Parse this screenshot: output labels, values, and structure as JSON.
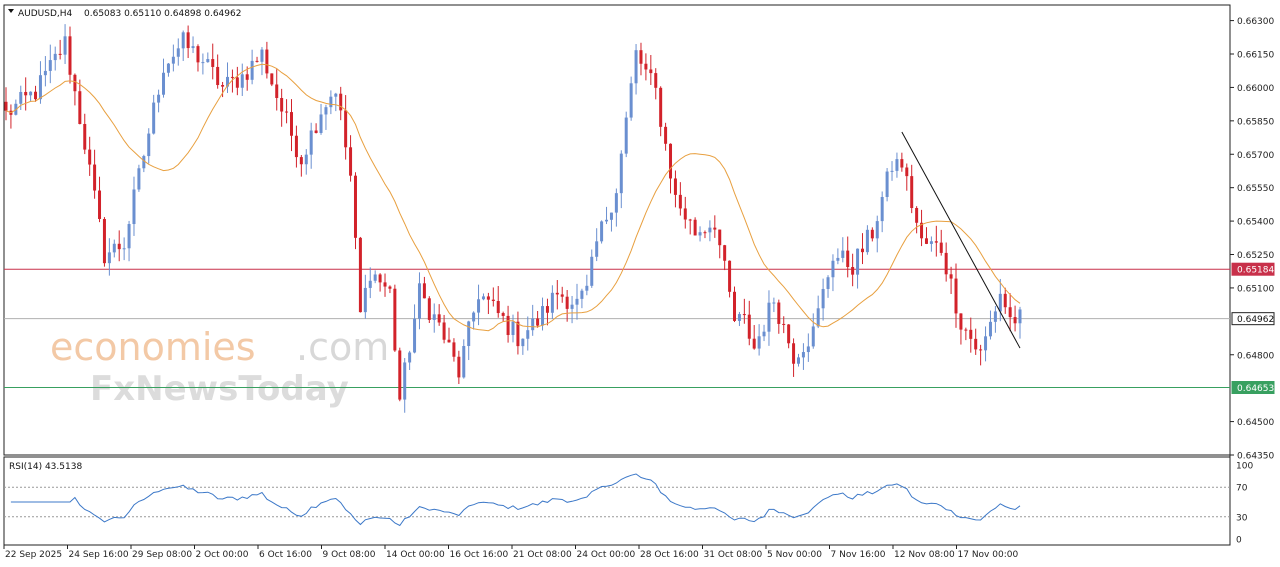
{
  "header": {
    "symbol": "AUDUSD,H4",
    "ohlc": "0.65083 0.65110 0.64898 0.64962"
  },
  "watermark": {
    "brand": "economies",
    "domain": ".com",
    "sub": "FxNewsToday"
  },
  "rsi": {
    "label": "RSI(14) 43.5138",
    "period": 14,
    "value": 43.5138,
    "levels": [
      70,
      30
    ],
    "ticks": [
      "100",
      "70",
      "30",
      "0"
    ],
    "color": "#3c78c8"
  },
  "colors": {
    "bull": "#6a8fd0",
    "bear": "#d2222a",
    "ma": "#e8a040",
    "resistance": "#c8304a",
    "support": "#38a060",
    "current": "#b0b0b0",
    "trendline": "#111111"
  },
  "chart_data": {
    "type": "candlestick",
    "symbol": "AUDUSD",
    "timeframe": "H4",
    "ylim": [
      0.6435,
      0.6637
    ],
    "y_ticks": [
      "0.66300",
      "0.66150",
      "0.66000",
      "0.65850",
      "0.65700",
      "0.65550",
      "0.65400",
      "0.65250",
      "0.65100",
      "0.64800",
      "0.64500",
      "0.64350"
    ],
    "x_ticks": [
      "22 Sep 2025",
      "24 Sep 16:00",
      "29 Sep 08:00",
      "2 Oct 00:00",
      "6 Oct 16:00",
      "9 Oct 08:00",
      "14 Oct 00:00",
      "16 Oct 16:00",
      "21 Oct 08:00",
      "24 Oct 00:00",
      "28 Oct 16:00",
      "31 Oct 08:00",
      "5 Nov 00:00",
      "7 Nov 16:00",
      "12 Nov 08:00",
      "17 Nov 00:00"
    ],
    "horizontal_levels": [
      {
        "name": "resistance",
        "value": 0.65184,
        "label": "0.65184"
      },
      {
        "name": "current",
        "value": 0.64962,
        "label": "0.64962"
      },
      {
        "name": "support",
        "value": 0.64653,
        "label": "0.64653"
      }
    ],
    "trendline": {
      "from_index": 182,
      "from_price": 0.658,
      "to_index": 206,
      "to_price": 0.6483
    },
    "close_path": [
      [
        0,
        0.6588
      ],
      [
        6,
        0.6598
      ],
      [
        12,
        0.662
      ],
      [
        16,
        0.6575
      ],
      [
        20,
        0.6525
      ],
      [
        24,
        0.653
      ],
      [
        28,
        0.657
      ],
      [
        32,
        0.661
      ],
      [
        36,
        0.662
      ],
      [
        40,
        0.6612
      ],
      [
        44,
        0.66
      ],
      [
        48,
        0.6605
      ],
      [
        52,
        0.6615
      ],
      [
        56,
        0.659
      ],
      [
        60,
        0.6568
      ],
      [
        64,
        0.659
      ],
      [
        67,
        0.66
      ],
      [
        70,
        0.656
      ],
      [
        72,
        0.6498
      ],
      [
        74,
        0.6518
      ],
      [
        78,
        0.6508
      ],
      [
        80,
        0.646
      ],
      [
        84,
        0.6508
      ],
      [
        88,
        0.6493
      ],
      [
        92,
        0.6472
      ],
      [
        96,
        0.6508
      ],
      [
        100,
        0.6498
      ],
      [
        104,
        0.6488
      ],
      [
        108,
        0.6495
      ],
      [
        112,
        0.6508
      ],
      [
        116,
        0.6503
      ],
      [
        118,
        0.6508
      ],
      [
        120,
        0.653
      ],
      [
        124,
        0.6555
      ],
      [
        128,
        0.6615
      ],
      [
        132,
        0.6598
      ],
      [
        136,
        0.655
      ],
      [
        140,
        0.6535
      ],
      [
        144,
        0.654
      ],
      [
        148,
        0.6495
      ],
      [
        150,
        0.6495
      ],
      [
        152,
        0.6483
      ],
      [
        156,
        0.6505
      ],
      [
        160,
        0.648
      ],
      [
        164,
        0.649
      ],
      [
        168,
        0.6525
      ],
      [
        172,
        0.652
      ],
      [
        176,
        0.6535
      ],
      [
        180,
        0.6565
      ],
      [
        182,
        0.6566
      ],
      [
        186,
        0.653
      ],
      [
        190,
        0.6528
      ],
      [
        194,
        0.6495
      ],
      [
        198,
        0.648
      ],
      [
        202,
        0.6508
      ],
      [
        204,
        0.6496
      ]
    ]
  }
}
